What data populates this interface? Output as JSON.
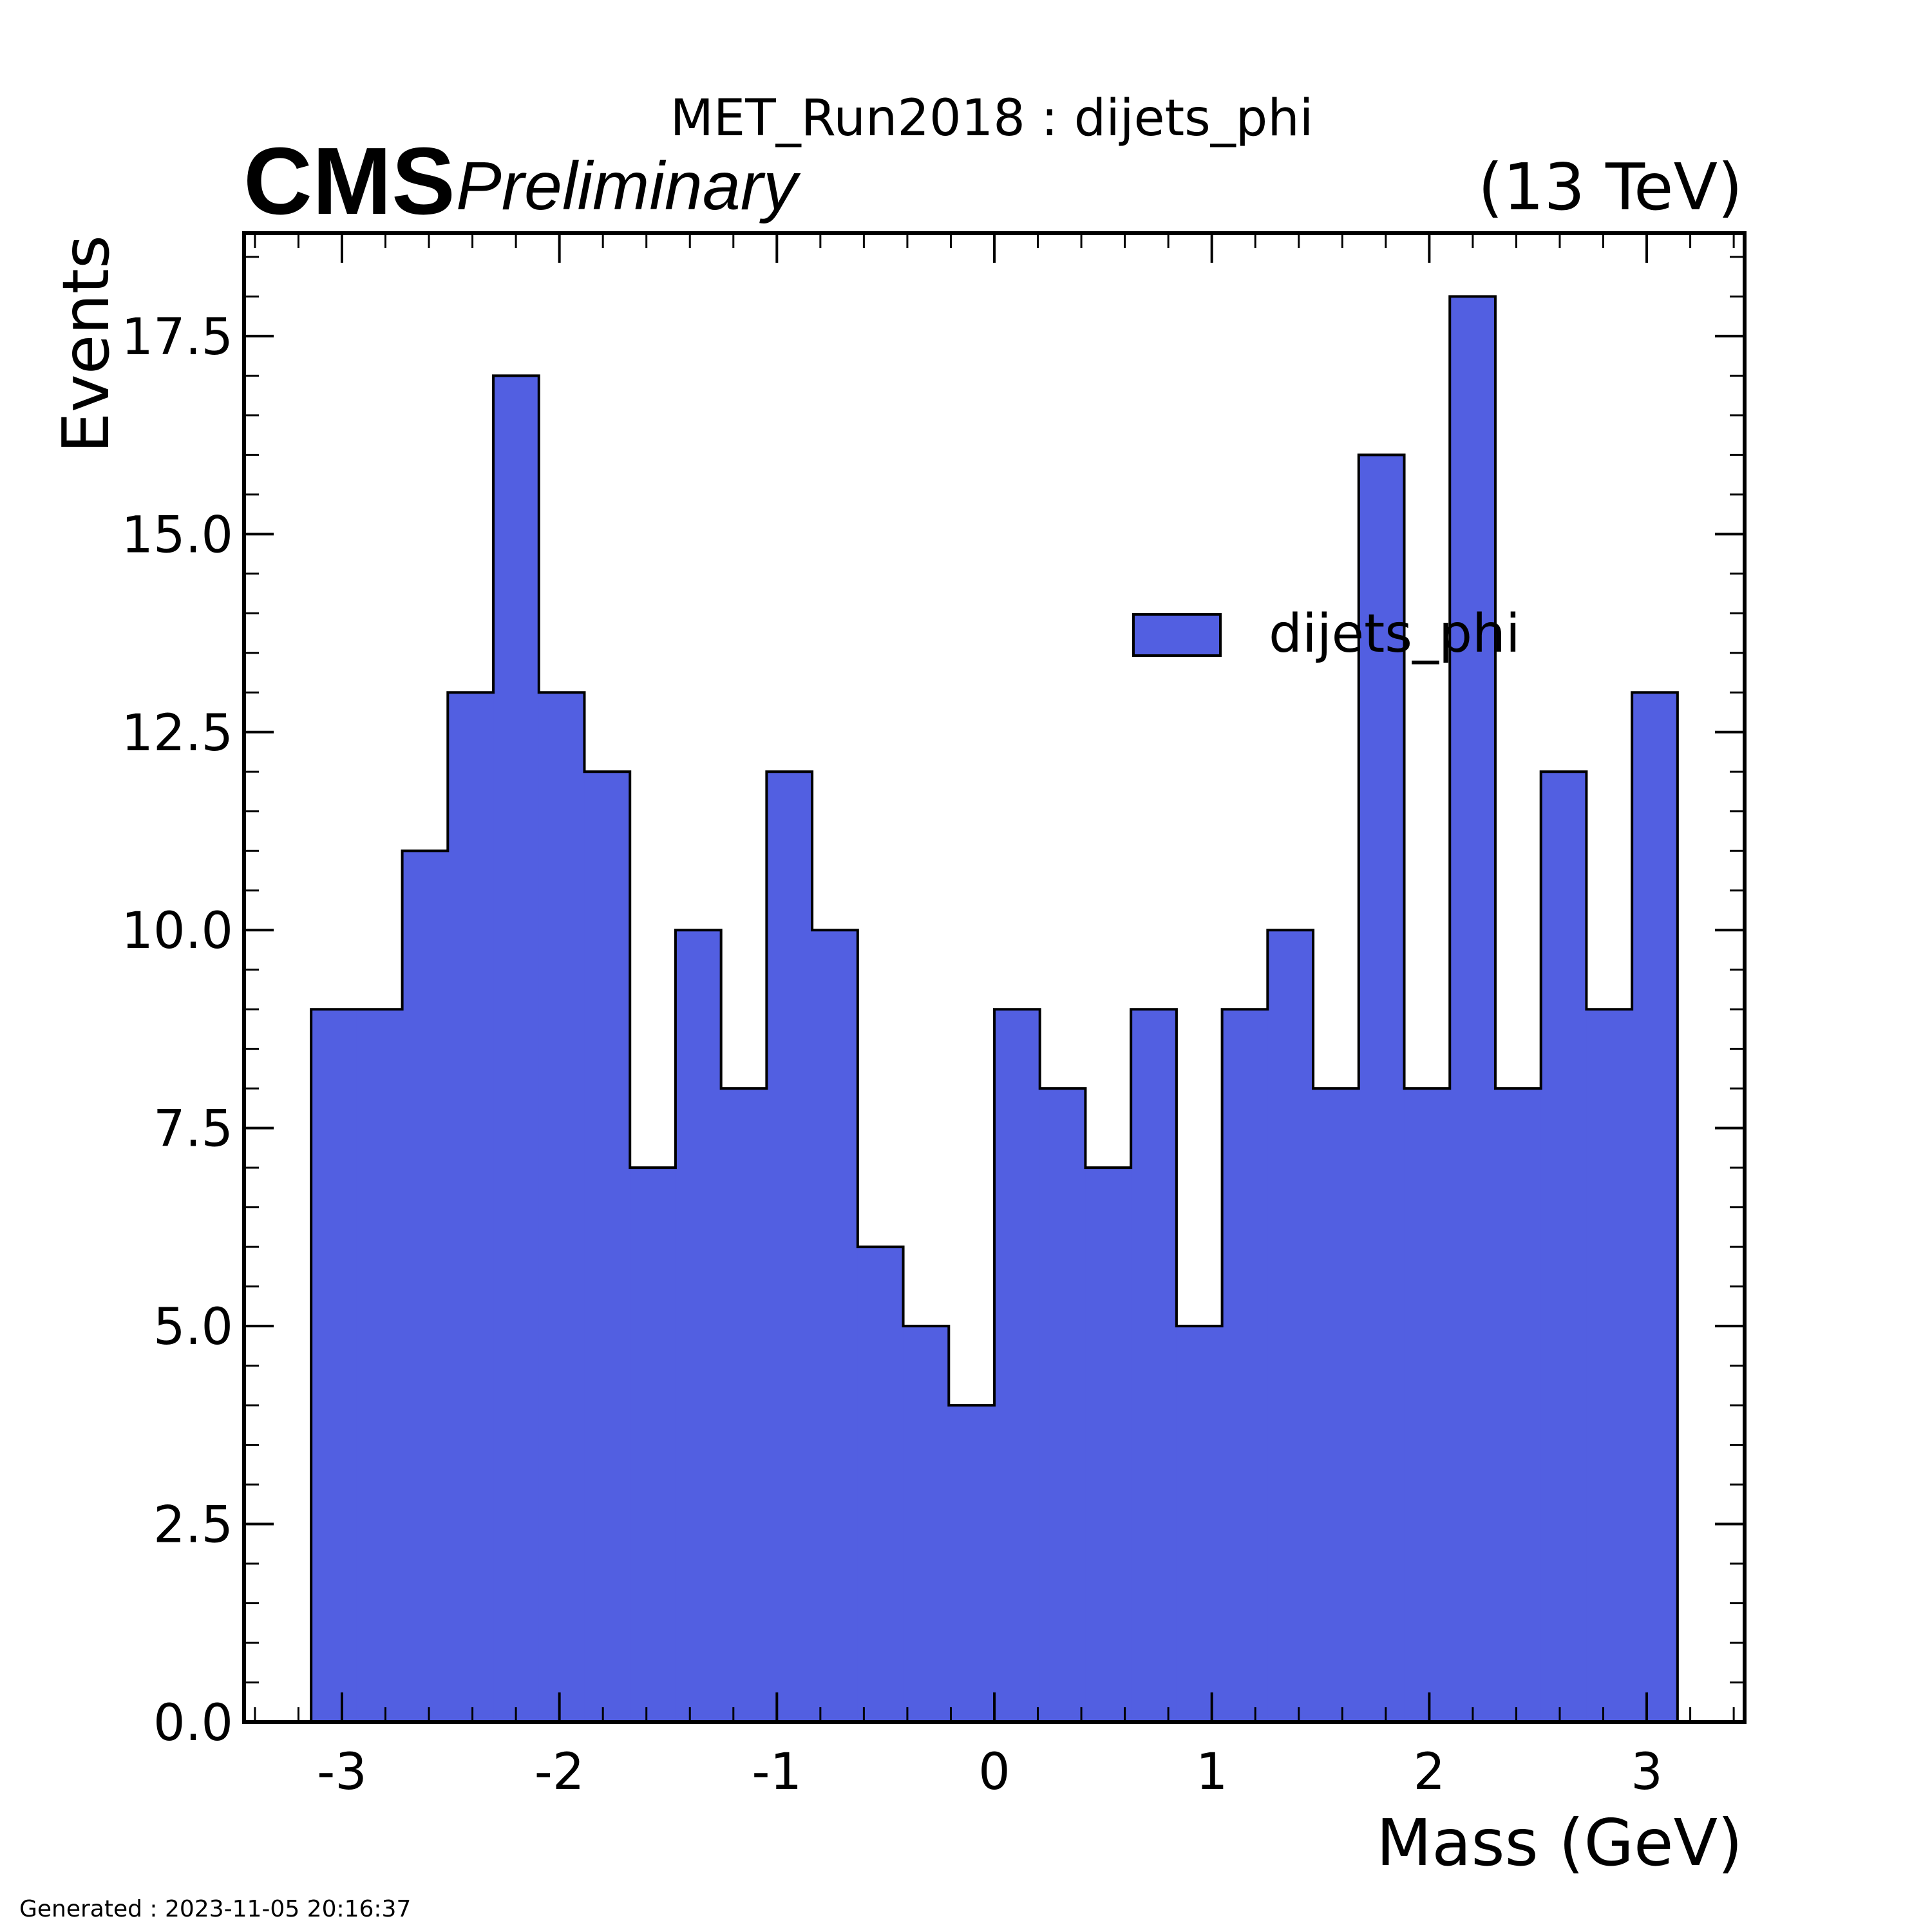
{
  "header": {
    "experiment": "CMS",
    "status": "Preliminary",
    "energy": "(13 TeV)"
  },
  "footer": {
    "generated": "Generated : 2023-11-05 20:16:37"
  },
  "colors": {
    "fill": "#525fe1",
    "edge": "#000000",
    "background": "#ffffff"
  },
  "chart_data": {
    "type": "bar",
    "title": "MET_Run2018 : dijets_phi",
    "xlabel": "Mass (GeV)",
    "ylabel": "Events",
    "xlim": [
      -3.45,
      3.45
    ],
    "ylim": [
      0,
      18.8
    ],
    "x_ticks": [
      "-3",
      "-2",
      "-1",
      "0",
      "1",
      "2",
      "3"
    ],
    "y_ticks": [
      "0.0",
      "2.5",
      "5.0",
      "7.5",
      "10.0",
      "12.5",
      "15.0",
      "17.5"
    ],
    "grid": false,
    "legend_position": "top-right",
    "bin_edges": [
      -3.1416,
      -2.9322,
      -2.7227,
      -2.5133,
      -2.3038,
      -2.0944,
      -1.885,
      -1.6755,
      -1.4661,
      -1.2566,
      -1.0472,
      -0.8378,
      -0.6283,
      -0.4189,
      -0.2094,
      0.0,
      0.2094,
      0.4189,
      0.6283,
      0.8378,
      1.0472,
      1.2566,
      1.4661,
      1.6755,
      1.885,
      2.0944,
      2.3038,
      2.5133,
      2.7227,
      2.9322,
      3.1416
    ],
    "series": [
      {
        "name": "dijets_phi",
        "values": [
          9,
          9,
          11,
          13,
          17,
          13,
          12,
          7,
          10,
          8,
          12,
          10,
          6,
          5,
          4,
          9,
          8,
          7,
          9,
          5,
          9,
          10,
          8,
          16,
          8,
          18,
          8,
          12,
          9,
          13
        ]
      }
    ]
  }
}
